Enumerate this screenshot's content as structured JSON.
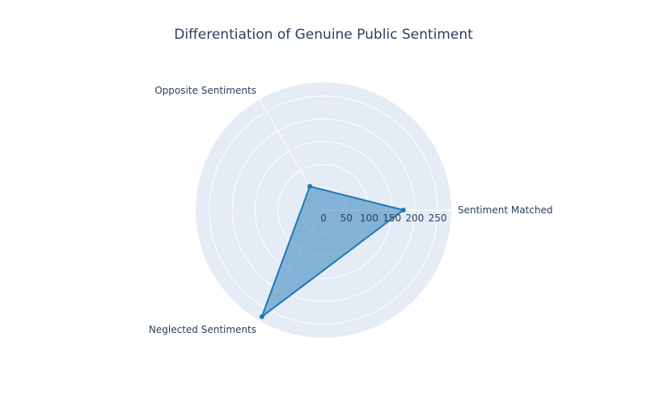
{
  "chart_data": {
    "type": "radar",
    "title": "Differentiation of Genuine Public Sentiment",
    "categories": [
      "Sentiment Matched",
      "Opposite Sentiments",
      "Neglected Sentiments"
    ],
    "series": [
      {
        "values": [
          175,
          60,
          270
        ]
      }
    ],
    "radial_range": [
      0,
      280
    ],
    "radial_ticks": [
      0,
      50,
      100,
      150,
      200,
      250
    ],
    "angular_direction": "counterclockwise",
    "start_angle_deg": 0,
    "grid": true,
    "legend": "none",
    "colors": {
      "polar_bg": "#e5ecf6",
      "grid": "#ffffff",
      "line": "#1f77b4",
      "fill": "#1f77b4",
      "fill_opacity": 0.5,
      "text": "#2a3f5f"
    }
  }
}
